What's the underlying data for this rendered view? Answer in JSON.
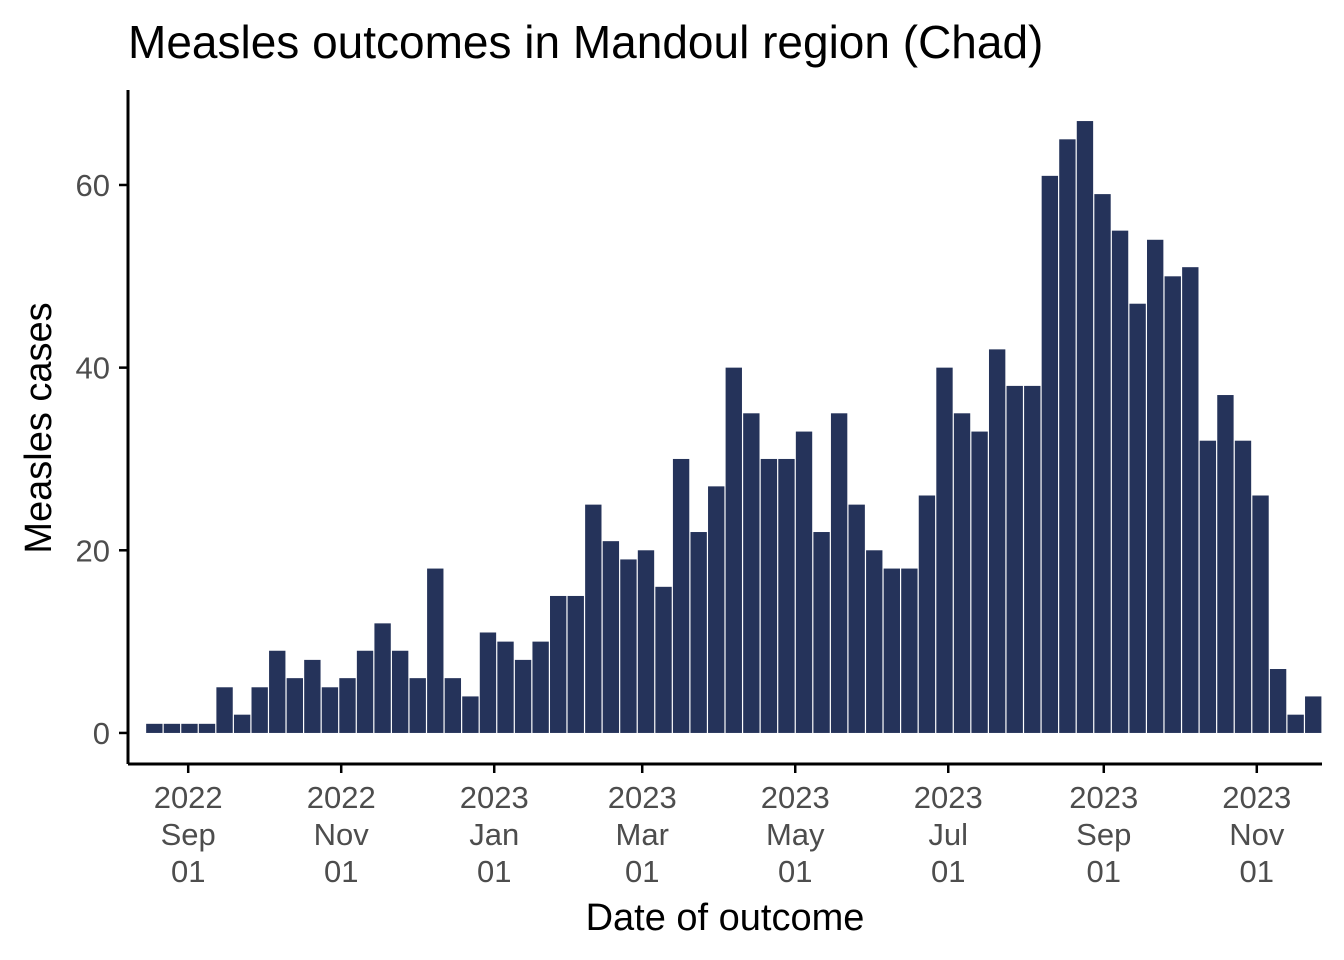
{
  "chart_data": {
    "type": "bar",
    "title": "Measles outcomes in Mandoul region (Chad)",
    "xlabel": "Date of outcome",
    "ylabel": "Measles cases",
    "bar_color": "#25335a",
    "background": "#ffffff",
    "grid": false,
    "legend": "none",
    "x_interval": "weekly",
    "xlim": [
      "2022-08-08",
      "2023-11-27"
    ],
    "ylim": [
      -3.4,
      70.4
    ],
    "y_ticks": [
      0,
      20,
      40,
      60
    ],
    "x_ticks": [
      {
        "date": "2022-09-01",
        "line1": "2022",
        "line2": "Sep",
        "line3": "01"
      },
      {
        "date": "2022-11-01",
        "line1": "2022",
        "line2": "Nov",
        "line3": "01"
      },
      {
        "date": "2023-01-01",
        "line1": "2023",
        "line2": "Jan",
        "line3": "01"
      },
      {
        "date": "2023-03-01",
        "line1": "2023",
        "line2": "Mar",
        "line3": "01"
      },
      {
        "date": "2023-05-01",
        "line1": "2023",
        "line2": "May",
        "line3": "01"
      },
      {
        "date": "2023-07-01",
        "line1": "2023",
        "line2": "Jul",
        "line3": "01"
      },
      {
        "date": "2023-09-01",
        "line1": "2023",
        "line2": "Sep",
        "line3": "01"
      },
      {
        "date": "2023-11-01",
        "line1": "2023",
        "line2": "Nov",
        "line3": "01"
      }
    ],
    "first_week_start": "2022-08-15",
    "values": [
      1,
      1,
      1,
      1,
      5,
      2,
      5,
      9,
      6,
      8,
      5,
      6,
      9,
      12,
      9,
      6,
      18,
      6,
      4,
      11,
      10,
      8,
      10,
      15,
      15,
      25,
      21,
      19,
      20,
      16,
      30,
      22,
      27,
      40,
      35,
      30,
      30,
      33,
      22,
      35,
      25,
      20,
      18,
      18,
      26,
      40,
      35,
      33,
      42,
      38,
      38,
      61,
      65,
      67,
      59,
      55,
      47,
      54,
      50,
      51,
      32,
      37,
      32,
      26,
      7,
      2,
      4
    ]
  }
}
